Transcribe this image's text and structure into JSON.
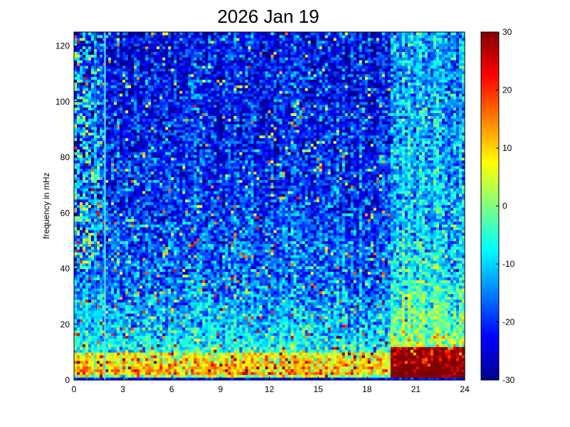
{
  "chart_data": {
    "type": "heatmap",
    "title": "2026 Jan 19",
    "xlabel": "",
    "ylabel": "frequency in mHz",
    "xlim": [
      0,
      24
    ],
    "ylim": [
      0,
      125
    ],
    "x_ticks": [
      "0",
      "3",
      "6",
      "9",
      "12",
      "15",
      "18",
      "21",
      "24"
    ],
    "y_ticks": [
      "0",
      "20",
      "40",
      "60",
      "80",
      "100",
      "120"
    ],
    "colorbar": {
      "colormap": "jet",
      "range": [
        -30,
        30
      ],
      "ticks": [
        "-30",
        "-20",
        "-10",
        "0",
        "10",
        "20",
        "30"
      ]
    },
    "grid": false,
    "features": {
      "regime_change_hour": 19.4,
      "early_strip_hours": [
        0,
        1.5
      ],
      "vertical_lines_hours": [
        1.3,
        1.9
      ],
      "low_freq_band_mhz": [
        2,
        10
      ]
    }
  }
}
